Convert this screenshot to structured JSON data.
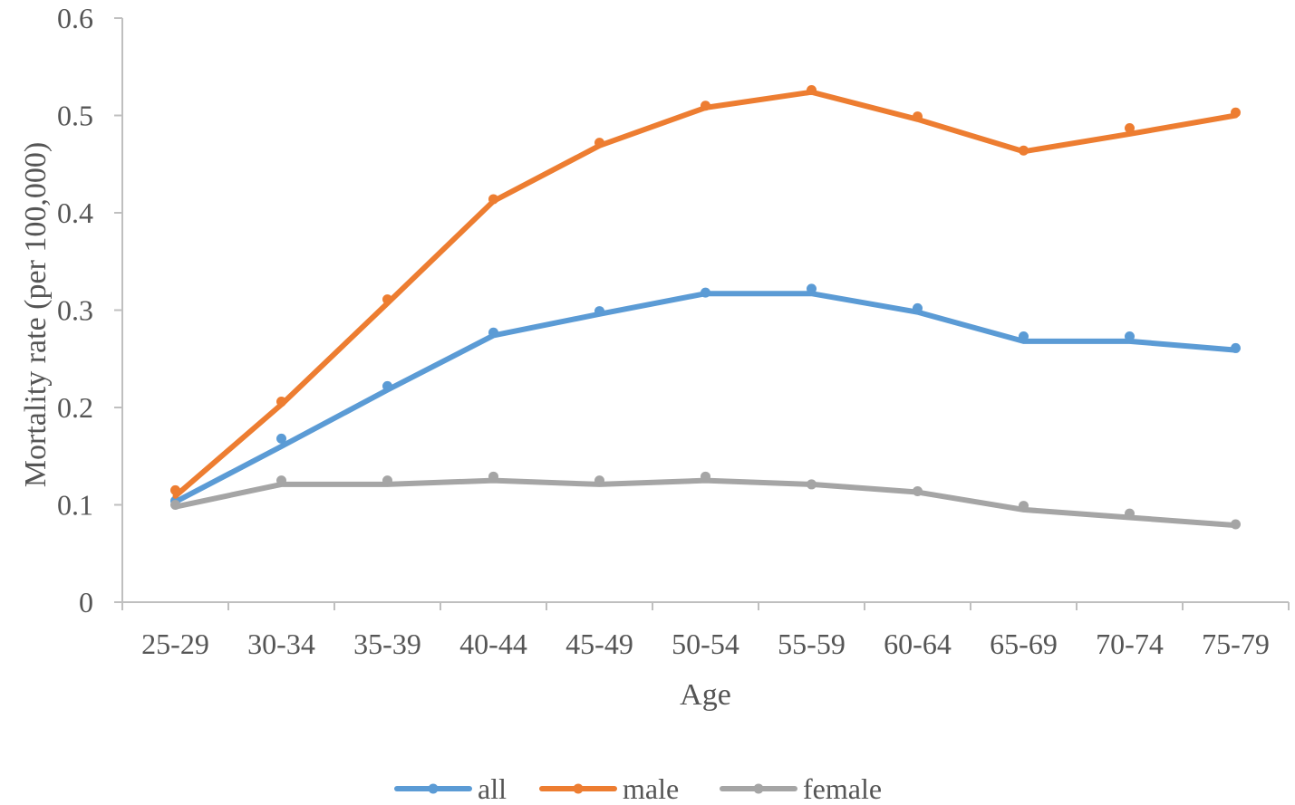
{
  "chart_data": {
    "type": "line",
    "title": "",
    "xlabel": "Age",
    "ylabel": "Mortality rate (per 100,000)",
    "ylim": [
      0,
      0.6
    ],
    "yticks": [
      "0",
      "0.1",
      "0.2",
      "0.3",
      "0.4",
      "0.5",
      "0.6"
    ],
    "categories": [
      "25-29",
      "30-34",
      "35-39",
      "40-44",
      "45-49",
      "50-54",
      "55-59",
      "60-64",
      "65-69",
      "70-74",
      "75-79"
    ],
    "grid": false,
    "legend_position": "bottom",
    "series": [
      {
        "name": "all",
        "color": "#5b9bd5",
        "markers": [
          0.104,
          0.168,
          0.222,
          0.277,
          0.299,
          0.318,
          0.322,
          0.302,
          0.273,
          0.273,
          0.261
        ],
        "values": [
          0.103,
          0.16,
          0.218,
          0.274,
          0.296,
          0.317,
          0.317,
          0.298,
          0.268,
          0.268,
          0.259
        ]
      },
      {
        "name": "male",
        "color": "#ed7d31",
        "markers": [
          0.115,
          0.206,
          0.311,
          0.414,
          0.472,
          0.51,
          0.526,
          0.499,
          0.464,
          0.487,
          0.503
        ],
        "values": [
          0.109,
          0.203,
          0.307,
          0.412,
          0.469,
          0.508,
          0.524,
          0.496,
          0.463,
          0.481,
          0.5
        ]
      },
      {
        "name": "female",
        "color": "#a5a5a5",
        "markers": [
          0.1,
          0.125,
          0.125,
          0.129,
          0.125,
          0.129,
          0.121,
          0.114,
          0.099,
          0.091,
          0.08
        ],
        "values": [
          0.098,
          0.121,
          0.121,
          0.125,
          0.121,
          0.125,
          0.121,
          0.113,
          0.095,
          0.087,
          0.079
        ]
      }
    ]
  }
}
